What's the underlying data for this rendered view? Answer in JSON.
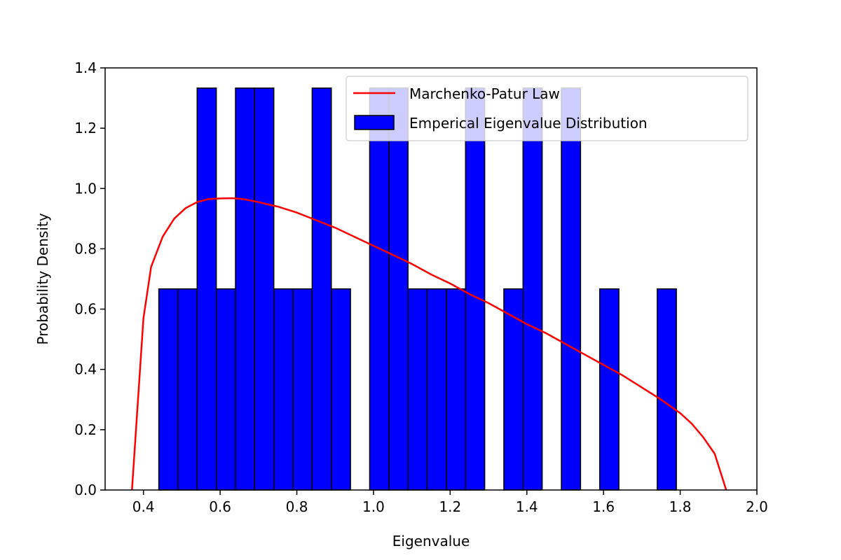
{
  "chart_data": {
    "type": "bar",
    "title": "",
    "xlabel": "Eigenvalue",
    "ylabel": "Probability Density",
    "xlim": [
      0.3,
      2.0
    ],
    "ylim": [
      0.0,
      1.4
    ],
    "xticks": [
      "0.4",
      "0.6",
      "0.8",
      "1.0",
      "1.2",
      "1.4",
      "1.6",
      "1.8",
      "2.0"
    ],
    "yticks": [
      "0.0",
      "0.2",
      "0.4",
      "0.6",
      "0.8",
      "1.0",
      "1.2",
      "1.4"
    ],
    "grid": false,
    "legend_position": "top-right",
    "histogram": {
      "name": "Emperical Eigenvalue Distribution",
      "color": "#0000ff",
      "edge_color": "#000000",
      "bin_width": 0.05,
      "bin_start": [
        0.44,
        0.49,
        0.54,
        0.59,
        0.64,
        0.69,
        0.74,
        0.79,
        0.84,
        0.89,
        0.99,
        1.04,
        1.09,
        1.14,
        1.19,
        1.24,
        1.34,
        1.39,
        1.49,
        1.59,
        1.74
      ],
      "density": [
        0.667,
        0.667,
        1.333,
        0.667,
        1.333,
        1.333,
        0.667,
        0.667,
        1.333,
        0.667,
        1.333,
        1.333,
        0.667,
        0.667,
        0.667,
        1.333,
        0.667,
        1.333,
        1.333,
        0.667,
        0.667
      ]
    },
    "curve": {
      "name": "Marchenko-Patur Law",
      "color": "#ff0000",
      "x": [
        0.37,
        0.4,
        0.42,
        0.45,
        0.48,
        0.51,
        0.54,
        0.57,
        0.6,
        0.63,
        0.66,
        0.7,
        0.75,
        0.8,
        0.85,
        0.9,
        0.95,
        1.0,
        1.05,
        1.1,
        1.15,
        1.2,
        1.25,
        1.3,
        1.35,
        1.4,
        1.45,
        1.5,
        1.55,
        1.6,
        1.65,
        1.7,
        1.75,
        1.8,
        1.83,
        1.86,
        1.89,
        1.92
      ],
      "y": [
        0.0,
        0.57,
        0.74,
        0.84,
        0.9,
        0.935,
        0.955,
        0.965,
        0.967,
        0.968,
        0.965,
        0.955,
        0.94,
        0.92,
        0.895,
        0.87,
        0.84,
        0.81,
        0.78,
        0.75,
        0.715,
        0.685,
        0.65,
        0.62,
        0.585,
        0.55,
        0.52,
        0.485,
        0.45,
        0.415,
        0.38,
        0.34,
        0.3,
        0.255,
        0.22,
        0.175,
        0.12,
        0.0
      ]
    }
  }
}
